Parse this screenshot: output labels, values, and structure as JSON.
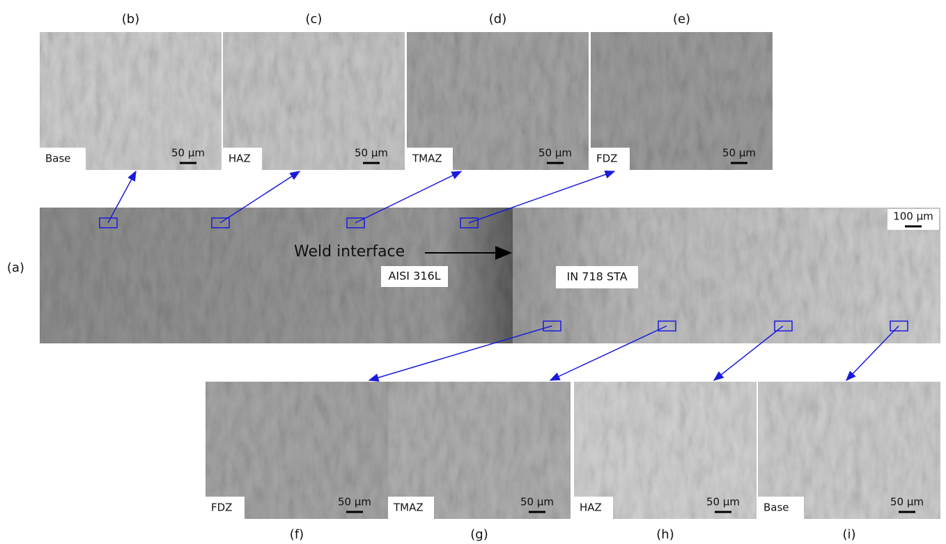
{
  "main": {
    "letter": "(a)",
    "scale": "100 µm",
    "interface": "Weld interface",
    "left_material": "AISI 316L",
    "right_material": "IN 718 STA"
  },
  "top_panels": [
    {
      "letter": "(b)",
      "zone": "Base",
      "scale": "50 µm"
    },
    {
      "letter": "(c)",
      "zone": "HAZ",
      "scale": "50 µm"
    },
    {
      "letter": "(d)",
      "zone": "TMAZ",
      "scale": "50 µm"
    },
    {
      "letter": "(e)",
      "zone": "FDZ",
      "scale": "50 µm"
    }
  ],
  "bottom_panels": [
    {
      "letter": "(f)",
      "zone": "FDZ",
      "scale": "50 µm"
    },
    {
      "letter": "(g)",
      "zone": "TMAZ",
      "scale": "50 µm"
    },
    {
      "letter": "(h)",
      "zone": "HAZ",
      "scale": "50 µm"
    },
    {
      "letter": "(i)",
      "zone": "Base",
      "scale": "50 µm"
    }
  ]
}
